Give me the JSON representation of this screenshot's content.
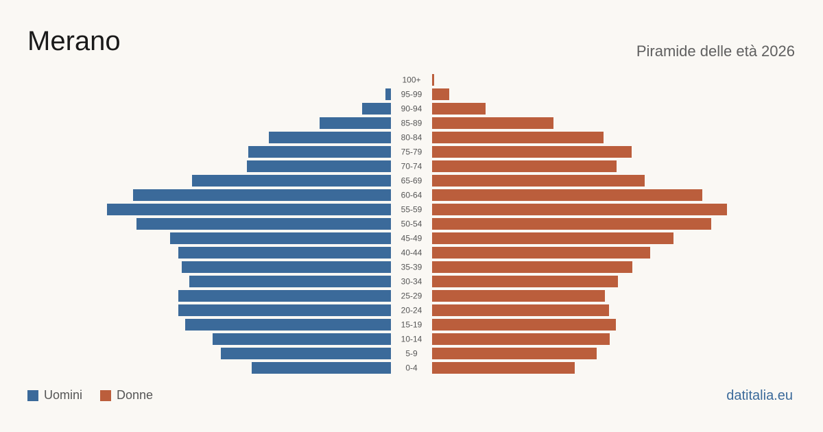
{
  "header": {
    "title": "Merano",
    "subtitle": "Piramide delle età 2026"
  },
  "legend": {
    "men_label": "Uomini",
    "women_label": "Donne"
  },
  "brand": "datitalia.eu",
  "colors": {
    "men": "#3b6a9a",
    "women": "#bb5e3c",
    "age_label": "#555555"
  },
  "chart_data": {
    "type": "bar",
    "orientation": "horizontal-pyramid",
    "categories": [
      "100+",
      "95-99",
      "90-94",
      "85-89",
      "80-84",
      "75-79",
      "70-74",
      "65-69",
      "60-64",
      "55-59",
      "50-54",
      "45-49",
      "40-44",
      "35-39",
      "30-34",
      "25-29",
      "20-24",
      "15-19",
      "10-14",
      "5-9",
      "0-4"
    ],
    "series": [
      {
        "name": "Uomini",
        "values": [
          0,
          8,
          42,
          104,
          178,
          208,
          210,
          290,
          376,
          414,
          371,
          322,
          310,
          305,
          294,
          310,
          310,
          300,
          260,
          248,
          203
        ]
      },
      {
        "name": "Donne",
        "values": [
          3,
          25,
          78,
          177,
          250,
          291,
          269,
          310,
          394,
          430,
          407,
          352,
          318,
          292,
          271,
          252,
          258,
          268,
          259,
          240,
          208
        ]
      }
    ],
    "legend_position": "bottom-left",
    "grid": false
  }
}
